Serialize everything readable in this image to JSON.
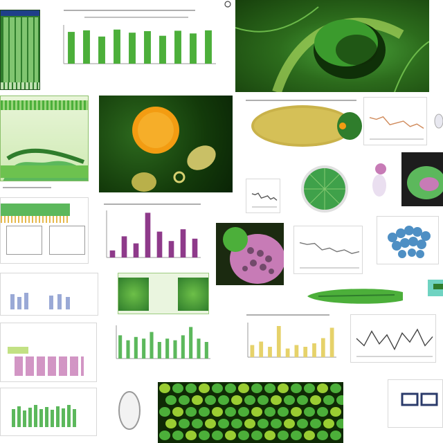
{
  "canvas": {
    "background": "#ffffff"
  },
  "palette": {
    "leaf_green": "#4caf3a",
    "dark_green": "#1f4d12",
    "lime": "#9acd32",
    "olive": "#7a8c2a",
    "orange": "#f39c12",
    "magenta": "#8e3a8a",
    "pink": "#c77bb6",
    "yellow_bar": "#e6d26a",
    "blue_cell": "#4e8fc4",
    "gray_text": "#8a8a8a"
  },
  "tiles": [
    {
      "id": "spreadsheet-thumb",
      "kind": "table-image"
    },
    {
      "id": "green-bar-chart",
      "kind": "chart"
    },
    {
      "id": "leaf-closeup",
      "kind": "photo"
    },
    {
      "id": "stem-cross-section",
      "kind": "photo"
    },
    {
      "id": "orange-cell-micrograph",
      "kind": "photo"
    },
    {
      "id": "seed-pod",
      "kind": "photo"
    },
    {
      "id": "small-line-chart",
      "kind": "chart"
    },
    {
      "id": "diatom-disc",
      "kind": "photo"
    },
    {
      "id": "purple-bar-chart",
      "kind": "chart"
    },
    {
      "id": "pink-cell-cluster",
      "kind": "photo"
    },
    {
      "id": "blue-cells-panel",
      "kind": "photo"
    },
    {
      "id": "green-pod-horizontal",
      "kind": "photo"
    },
    {
      "id": "green-bar-chart-2",
      "kind": "chart"
    },
    {
      "id": "yellow-bar-chart",
      "kind": "chart"
    },
    {
      "id": "zigzag-line-chart",
      "kind": "chart"
    },
    {
      "id": "leaf-tissue-mosaic",
      "kind": "photo"
    },
    {
      "id": "seed-outline",
      "kind": "photo"
    }
  ],
  "chart_data": [
    {
      "id": "green-bar-chart",
      "type": "bar",
      "values": [
        0.82,
        0.86,
        0.7,
        0.88,
        0.8,
        0.84,
        0.72,
        0.85,
        0.78,
        0.86
      ],
      "color": "#4caf3a"
    },
    {
      "id": "purple-bar-chart",
      "type": "bar",
      "values": [
        0.15,
        0.45,
        0.3,
        0.95,
        0.55,
        0.35,
        0.6,
        0.4
      ],
      "color": "#8e3a8a"
    },
    {
      "id": "green-bar-chart-2",
      "type": "bar",
      "values": [
        0.7,
        0.55,
        0.65,
        0.6,
        0.8,
        0.5,
        0.6,
        0.55,
        0.7,
        0.95,
        0.6,
        0.5
      ],
      "color": "#5cb85c"
    },
    {
      "id": "yellow-bar-chart",
      "type": "bar",
      "values": [
        0.35,
        0.45,
        0.3,
        0.9,
        0.25,
        0.35,
        0.3,
        0.4,
        0.55,
        0.85
      ],
      "color": "#e6d26a"
    },
    {
      "id": "small-line-chart",
      "type": "line",
      "values": [
        0.6,
        0.55,
        0.62,
        0.4,
        0.45,
        0.5,
        0.35,
        0.42,
        0.3
      ]
    },
    {
      "id": "zigzag-line-chart",
      "type": "line",
      "values": [
        0.5,
        0.3,
        0.7,
        0.35,
        0.6,
        0.2,
        0.65,
        0.4,
        0.75,
        0.3,
        0.55
      ]
    },
    {
      "id": "right-mini-line-chart",
      "type": "line",
      "values": [
        0.7,
        0.65,
        0.68,
        0.5,
        0.55,
        0.45,
        0.5,
        0.4,
        0.45
      ]
    }
  ]
}
